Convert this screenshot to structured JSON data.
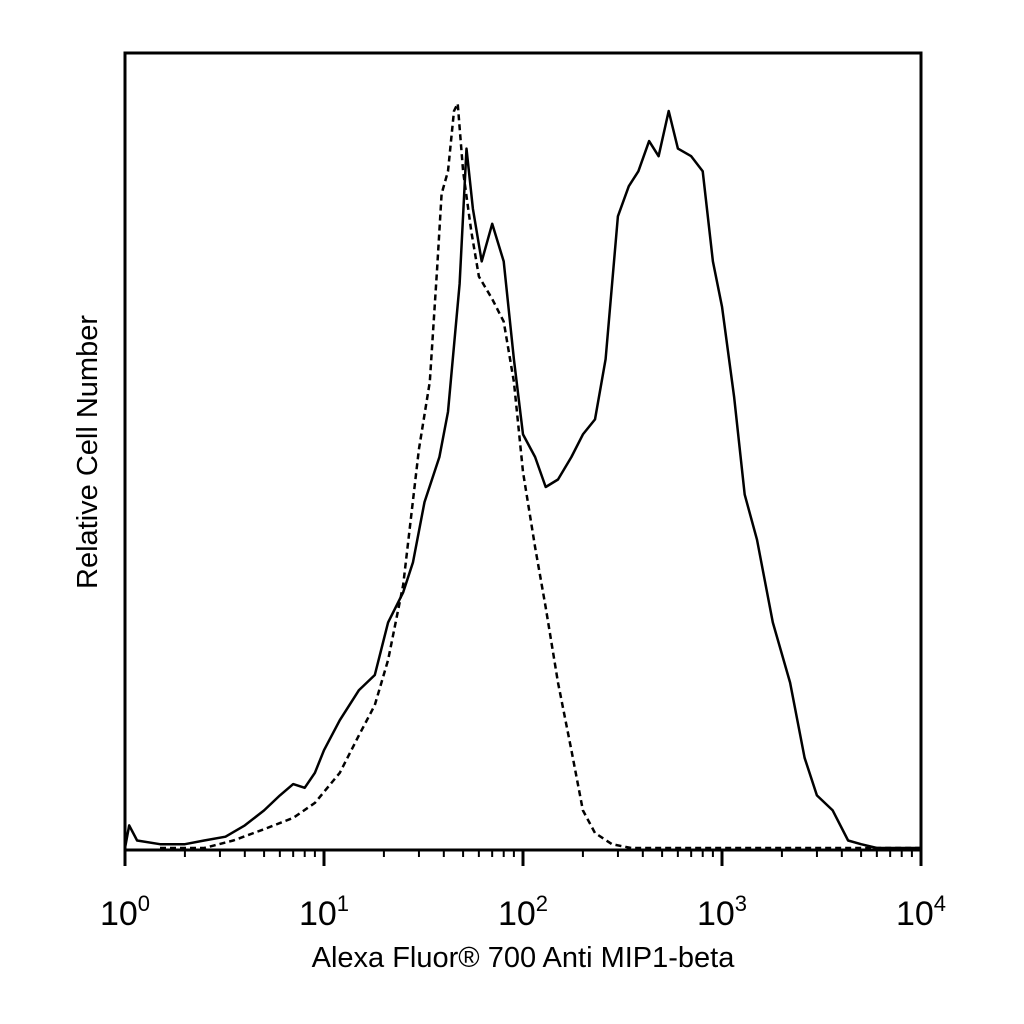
{
  "chart_data": {
    "type": "line",
    "title": "",
    "xlabel": "Alexa Fluor® 700 Anti MIP1-beta",
    "ylabel": "Relative Cell Number",
    "xscale": "log",
    "xlim": [
      1,
      10000
    ],
    "ylim": [
      0,
      1
    ],
    "grid": false,
    "xticks": [
      {
        "value": 1,
        "base": "10",
        "exp": "0"
      },
      {
        "value": 10,
        "base": "10",
        "exp": "1"
      },
      {
        "value": 100,
        "base": "10",
        "exp": "2"
      },
      {
        "value": 1000,
        "base": "10",
        "exp": "3"
      },
      {
        "value": 10000,
        "base": "10",
        "exp": "4"
      }
    ],
    "series": [
      {
        "style": "solid",
        "color": "#000000",
        "points": [
          [
            1.0,
            0.0
          ],
          [
            1.05,
            0.03
          ],
          [
            1.15,
            0.01
          ],
          [
            1.5,
            0.005
          ],
          [
            2.0,
            0.005
          ],
          [
            2.5,
            0.01
          ],
          [
            3.2,
            0.015
          ],
          [
            4.0,
            0.03
          ],
          [
            5.0,
            0.05
          ],
          [
            6.0,
            0.07
          ],
          [
            7.0,
            0.085
          ],
          [
            8.0,
            0.08
          ],
          [
            9.0,
            0.1
          ],
          [
            10.0,
            0.13
          ],
          [
            12.0,
            0.17
          ],
          [
            15.0,
            0.21
          ],
          [
            18.0,
            0.23
          ],
          [
            21.0,
            0.3
          ],
          [
            25.0,
            0.34
          ],
          [
            28.0,
            0.38
          ],
          [
            32.0,
            0.46
          ],
          [
            38.0,
            0.52
          ],
          [
            42.0,
            0.58
          ],
          [
            48.0,
            0.75
          ],
          [
            52.0,
            0.93
          ],
          [
            56.0,
            0.85
          ],
          [
            62.0,
            0.78
          ],
          [
            70.0,
            0.83
          ],
          [
            80.0,
            0.78
          ],
          [
            90.0,
            0.65
          ],
          [
            100.0,
            0.55
          ],
          [
            115.0,
            0.52
          ],
          [
            130.0,
            0.48
          ],
          [
            150.0,
            0.49
          ],
          [
            175.0,
            0.52
          ],
          [
            200.0,
            0.55
          ],
          [
            230.0,
            0.57
          ],
          [
            260.0,
            0.65
          ],
          [
            300.0,
            0.84
          ],
          [
            340.0,
            0.88
          ],
          [
            380.0,
            0.9
          ],
          [
            430.0,
            0.94
          ],
          [
            480.0,
            0.92
          ],
          [
            540.0,
            0.98
          ],
          [
            600.0,
            0.93
          ],
          [
            700.0,
            0.92
          ],
          [
            800.0,
            0.9
          ],
          [
            900.0,
            0.78
          ],
          [
            1000.0,
            0.72
          ],
          [
            1150.0,
            0.6
          ],
          [
            1300.0,
            0.47
          ],
          [
            1500.0,
            0.41
          ],
          [
            1800.0,
            0.3
          ],
          [
            2200.0,
            0.22
          ],
          [
            2600.0,
            0.12
          ],
          [
            3000.0,
            0.07
          ],
          [
            3600.0,
            0.05
          ],
          [
            4300.0,
            0.01
          ],
          [
            5000.0,
            0.005
          ],
          [
            6000.0,
            0.0
          ],
          [
            10000.0,
            0.0
          ]
        ]
      },
      {
        "style": "dashed",
        "color": "#000000",
        "points": [
          [
            1.5,
            0.0
          ],
          [
            2.5,
            0.0
          ],
          [
            3.5,
            0.01
          ],
          [
            5.0,
            0.025
          ],
          [
            7.0,
            0.04
          ],
          [
            9.0,
            0.06
          ],
          [
            12.0,
            0.1
          ],
          [
            15.0,
            0.15
          ],
          [
            18.0,
            0.19
          ],
          [
            21.0,
            0.25
          ],
          [
            25.0,
            0.35
          ],
          [
            30.0,
            0.53
          ],
          [
            34.0,
            0.62
          ],
          [
            37.0,
            0.77
          ],
          [
            39.0,
            0.87
          ],
          [
            42.0,
            0.9
          ],
          [
            45.0,
            0.98
          ],
          [
            47.0,
            0.99
          ],
          [
            50.0,
            0.9
          ],
          [
            55.0,
            0.82
          ],
          [
            60.0,
            0.76
          ],
          [
            70.0,
            0.73
          ],
          [
            80.0,
            0.7
          ],
          [
            90.0,
            0.62
          ],
          [
            100.0,
            0.5
          ],
          [
            115.0,
            0.4
          ],
          [
            130.0,
            0.32
          ],
          [
            150.0,
            0.22
          ],
          [
            175.0,
            0.13
          ],
          [
            200.0,
            0.05
          ],
          [
            230.0,
            0.02
          ],
          [
            280.0,
            0.005
          ],
          [
            350.0,
            0.0
          ],
          [
            1000.0,
            0.0
          ],
          [
            10000.0,
            0.0
          ]
        ]
      }
    ]
  }
}
